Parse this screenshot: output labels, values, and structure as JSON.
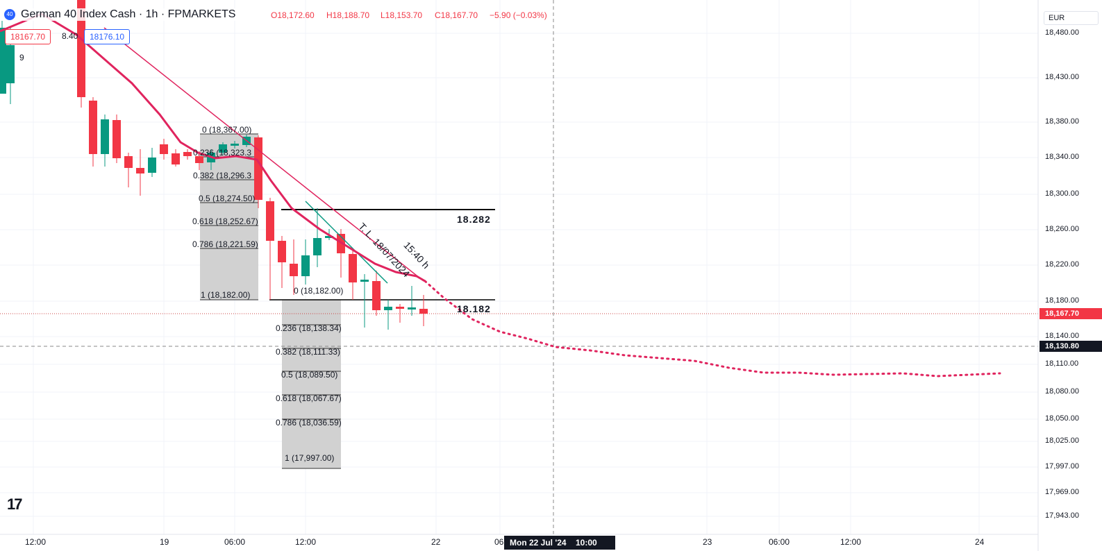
{
  "header": {
    "badge": "40",
    "symbol": "German 40 Index Cash · 1h · FPMARKETS",
    "open": "O18,172.60",
    "high": "H18,188.70",
    "low": "L18,153.70",
    "close": "C18,167.70",
    "change": "−5.90 (−0.03%)"
  },
  "order_panel": {
    "sell": "18167.70",
    "spread": "8.40",
    "buy": "18176.10",
    "indicators": "9"
  },
  "currency": "EUR",
  "price_axis": {
    "labels": [
      "18,480.00",
      "18,430.00",
      "18,380.00",
      "18,340.00",
      "18,300.00",
      "18,260.00",
      "18,220.00",
      "18,180.00",
      "18,140.00",
      "18,110.00",
      "18,080.00",
      "18,050.00",
      "18,025.00",
      "17,997.00",
      "17,969.00",
      "17,943.00"
    ],
    "last_price": "18,167.70",
    "crosshair_price": "18,130.80"
  },
  "time_axis": {
    "labels": [
      "12:00",
      "19",
      "06:00",
      "12:00",
      "22",
      "06",
      "23",
      "06:00",
      "12:00",
      "24"
    ],
    "crosshair_time": "Mon 22 Jul '24",
    "crosshair_hour": "10:00"
  },
  "fib_upper": [
    "0 (18,367.00)",
    "0.236 (18,323.3",
    "0.382 (18,296.3",
    "0.5 (18,274.50)",
    "0.618 (18,252.67)",
    "0.786 (18,221.59)",
    "1 (18,182.00)"
  ],
  "fib_lower": [
    "0 (18,182.00)",
    "0.236 (18,138.34)",
    "0.382 (18,111.33)",
    "0.5 (18,089.50)",
    "0.618 (18,067.67)",
    "0.786 (18,036.59)",
    "1 (17,997.00)"
  ],
  "levels": {
    "resistance": "18.282",
    "support": "18.182"
  },
  "trendline_label": {
    "line1": "T. L. 18/07/2024",
    "line2": "15:40 h"
  },
  "logo": "17"
}
